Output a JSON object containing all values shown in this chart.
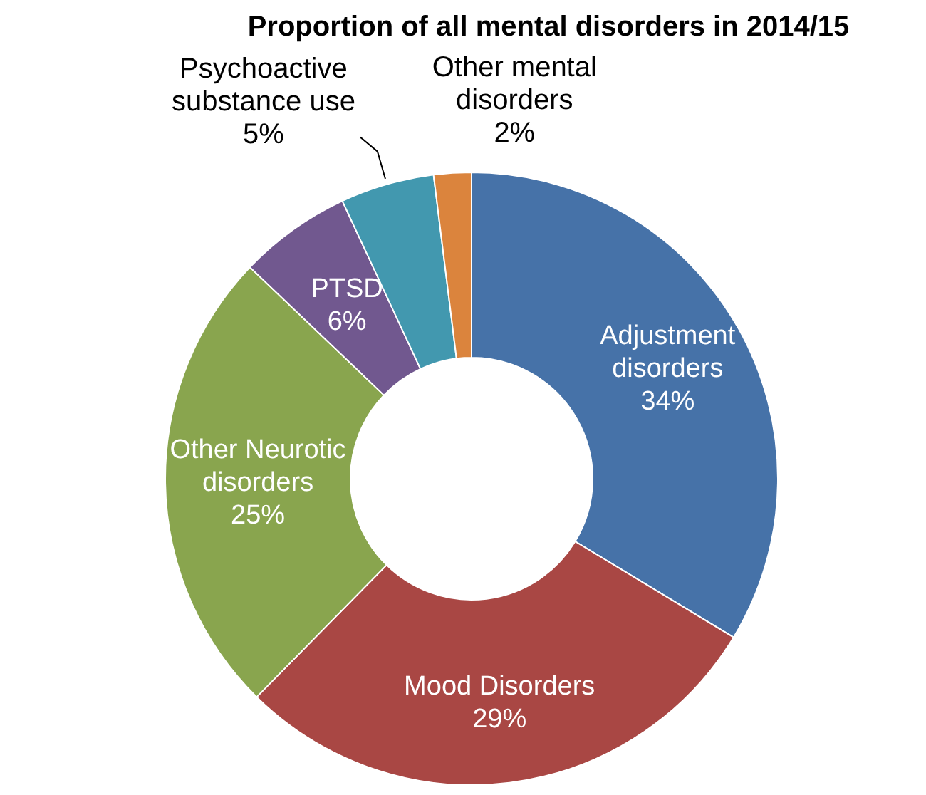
{
  "chart_data": {
    "type": "donut",
    "title": "Proportion of all mental disorders in 2014/15",
    "categories": [
      "Adjustment disorders",
      "Mood Disorders",
      "Other Neurotic disorders",
      "PTSD",
      "Psychoactive substance use",
      "Other mental disorders"
    ],
    "values": [
      34,
      29,
      25,
      6,
      5,
      2
    ],
    "value_labels": [
      "34%",
      "29%",
      "25%",
      "6%",
      "5%",
      "2%"
    ],
    "colors": [
      "#4672a8",
      "#a94744",
      "#89a54e",
      "#71588f",
      "#4298af",
      "#db843d"
    ],
    "legend": false
  }
}
